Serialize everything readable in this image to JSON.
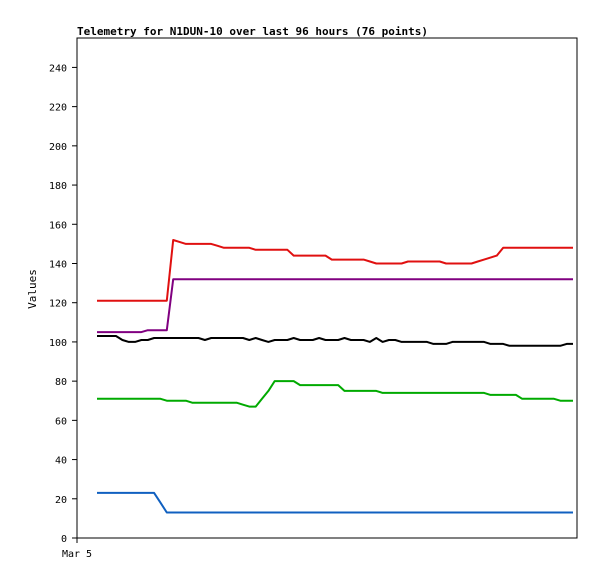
{
  "chart_data": {
    "type": "line",
    "title": "Telemetry for N1DUN-10 over last 96 hours (76 points)",
    "xlabel": "",
    "ylabel": "Values",
    "ylim": [
      0,
      255
    ],
    "yticks": [
      0,
      20,
      40,
      60,
      80,
      100,
      120,
      140,
      160,
      180,
      200,
      220,
      240
    ],
    "xticks": [
      "Mar 5"
    ],
    "grid": false,
    "legend": "none",
    "x": [
      0,
      1,
      2,
      3,
      4,
      5,
      6,
      7,
      8,
      9,
      10,
      11,
      12,
      13,
      14,
      15,
      16,
      17,
      18,
      19,
      20,
      21,
      22,
      23,
      24,
      25,
      26,
      27,
      28,
      29,
      30,
      31,
      32,
      33,
      34,
      35,
      36,
      37,
      38,
      39,
      40,
      41,
      42,
      43,
      44,
      45,
      46,
      47,
      48,
      49,
      50,
      51,
      52,
      53,
      54,
      55,
      56,
      57,
      58,
      59,
      60,
      61,
      62,
      63,
      64,
      65,
      66,
      67,
      68,
      69,
      70,
      71,
      72,
      73,
      74,
      75
    ],
    "series": [
      {
        "color": "#e01010",
        "values": [
          121,
          121,
          121,
          121,
          121,
          121,
          121,
          121,
          121,
          121,
          121,
          121,
          152,
          151,
          150,
          150,
          150,
          150,
          150,
          149,
          148,
          148,
          148,
          148,
          148,
          147,
          147,
          147,
          147,
          147,
          147,
          144,
          144,
          144,
          144,
          144,
          144,
          142,
          142,
          142,
          142,
          142,
          142,
          141,
          140,
          140,
          140,
          140,
          140,
          141,
          141,
          141,
          141,
          141,
          141,
          140,
          140,
          140,
          140,
          140,
          141,
          142,
          143,
          144,
          148,
          148,
          148,
          148,
          148,
          148,
          148,
          148,
          148,
          148,
          148,
          148
        ]
      },
      {
        "color": "#800080",
        "values": [
          105,
          105,
          105,
          105,
          105,
          105,
          105,
          105,
          106,
          106,
          106,
          106,
          132,
          132,
          132,
          132,
          132,
          132,
          132,
          132,
          132,
          132,
          132,
          132,
          132,
          132,
          132,
          132,
          132,
          132,
          132,
          132,
          132,
          132,
          132,
          132,
          132,
          132,
          132,
          132,
          132,
          132,
          132,
          132,
          132,
          132,
          132,
          132,
          132,
          132,
          132,
          132,
          132,
          132,
          132,
          132,
          132,
          132,
          132,
          132,
          132,
          132,
          132,
          132,
          132,
          132,
          132,
          132,
          132,
          132,
          132,
          132,
          132,
          132,
          132,
          132
        ]
      },
      {
        "color": "#000000",
        "values": [
          103,
          103,
          103,
          103,
          101,
          100,
          100,
          101,
          101,
          102,
          102,
          102,
          102,
          102,
          102,
          102,
          102,
          101,
          102,
          102,
          102,
          102,
          102,
          102,
          101,
          102,
          101,
          100,
          101,
          101,
          101,
          102,
          101,
          101,
          101,
          102,
          101,
          101,
          101,
          102,
          101,
          101,
          101,
          100,
          102,
          100,
          101,
          101,
          100,
          100,
          100,
          100,
          100,
          99,
          99,
          99,
          100,
          100,
          100,
          100,
          100,
          100,
          99,
          99,
          99,
          98,
          98,
          98,
          98,
          98,
          98,
          98,
          98,
          98,
          99,
          99
        ]
      },
      {
        "color": "#00aa00",
        "values": [
          71,
          71,
          71,
          71,
          71,
          71,
          71,
          71,
          71,
          71,
          71,
          70,
          70,
          70,
          70,
          69,
          69,
          69,
          69,
          69,
          69,
          69,
          69,
          68,
          67,
          67,
          71,
          75,
          80,
          80,
          80,
          80,
          78,
          78,
          78,
          78,
          78,
          78,
          78,
          75,
          75,
          75,
          75,
          75,
          75,
          74,
          74,
          74,
          74,
          74,
          74,
          74,
          74,
          74,
          74,
          74,
          74,
          74,
          74,
          74,
          74,
          74,
          73,
          73,
          73,
          73,
          73,
          71,
          71,
          71,
          71,
          71,
          71,
          70,
          70,
          70
        ]
      },
      {
        "color": "#1060c0",
        "values": [
          23,
          23,
          23,
          23,
          23,
          23,
          23,
          23,
          23,
          23,
          18,
          13,
          13,
          13,
          13,
          13,
          13,
          13,
          13,
          13,
          13,
          13,
          13,
          13,
          13,
          13,
          13,
          13,
          13,
          13,
          13,
          13,
          13,
          13,
          13,
          13,
          13,
          13,
          13,
          13,
          13,
          13,
          13,
          13,
          13,
          13,
          13,
          13,
          13,
          13,
          13,
          13,
          13,
          13,
          13,
          13,
          13,
          13,
          13,
          13,
          13,
          13,
          13,
          13,
          13,
          13,
          13,
          13,
          13,
          13,
          13,
          13,
          13,
          13,
          13,
          13
        ]
      }
    ]
  }
}
